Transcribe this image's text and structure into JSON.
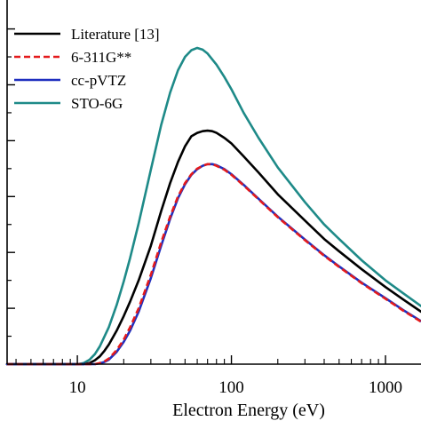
{
  "chart_data": {
    "type": "line",
    "title": "",
    "xlabel": "Electron Energy (eV)",
    "ylabel": "",
    "xscale": "log",
    "xlim": [
      3.5,
      1700
    ],
    "ylim": [
      0,
      6.2
    ],
    "grid": false,
    "legend_position": "top-left",
    "x_tick_labels": [
      {
        "value": 10,
        "label": "10"
      },
      {
        "value": 100,
        "label": "100"
      },
      {
        "value": 1000,
        "label": "1000"
      }
    ],
    "y_major_ticks": [
      1,
      2,
      3,
      4,
      5,
      6
    ],
    "series": [
      {
        "name": "Literature [13]",
        "color": "#000000",
        "dashed": false,
        "points": [
          [
            3.5,
            0
          ],
          [
            11,
            0
          ],
          [
            12,
            0.02
          ],
          [
            13,
            0.07
          ],
          [
            14,
            0.14
          ],
          [
            15,
            0.24
          ],
          [
            16,
            0.35
          ],
          [
            18,
            0.6
          ],
          [
            20,
            0.86
          ],
          [
            22,
            1.12
          ],
          [
            25,
            1.5
          ],
          [
            30,
            2.12
          ],
          [
            35,
            2.74
          ],
          [
            40,
            3.24
          ],
          [
            45,
            3.62
          ],
          [
            50,
            3.9
          ],
          [
            55,
            4.08
          ],
          [
            60,
            4.14
          ],
          [
            65,
            4.17
          ],
          [
            70,
            4.18
          ],
          [
            75,
            4.17
          ],
          [
            80,
            4.14
          ],
          [
            90,
            4.05
          ],
          [
            100,
            3.95
          ],
          [
            120,
            3.72
          ],
          [
            150,
            3.43
          ],
          [
            200,
            3.04
          ],
          [
            300,
            2.57
          ],
          [
            400,
            2.24
          ],
          [
            500,
            2.02
          ],
          [
            700,
            1.7
          ],
          [
            1000,
            1.38
          ],
          [
            1300,
            1.16
          ],
          [
            1700,
            0.94
          ]
        ]
      },
      {
        "name": "6-311G**",
        "color": "#e41a1c",
        "dashed": true,
        "points": [
          [
            3.5,
            0
          ],
          [
            13,
            0
          ],
          [
            14,
            0.02
          ],
          [
            15,
            0.05
          ],
          [
            16,
            0.1
          ],
          [
            18,
            0.25
          ],
          [
            20,
            0.44
          ],
          [
            22,
            0.66
          ],
          [
            25,
            1.0
          ],
          [
            30,
            1.6
          ],
          [
            35,
            2.18
          ],
          [
            40,
            2.64
          ],
          [
            45,
            3.0
          ],
          [
            50,
            3.24
          ],
          [
            55,
            3.4
          ],
          [
            60,
            3.5
          ],
          [
            65,
            3.55
          ],
          [
            70,
            3.58
          ],
          [
            75,
            3.58
          ],
          [
            80,
            3.55
          ],
          [
            90,
            3.48
          ],
          [
            100,
            3.39
          ],
          [
            120,
            3.2
          ],
          [
            150,
            2.95
          ],
          [
            200,
            2.63
          ],
          [
            300,
            2.22
          ],
          [
            400,
            1.94
          ],
          [
            500,
            1.74
          ],
          [
            700,
            1.45
          ],
          [
            1000,
            1.17
          ],
          [
            1300,
            0.96
          ],
          [
            1700,
            0.76
          ]
        ]
      },
      {
        "name": "cc-pVTZ",
        "color": "#1f2fbf",
        "dashed": false,
        "points": [
          [
            3.5,
            0
          ],
          [
            13,
            0
          ],
          [
            14,
            0.015
          ],
          [
            15,
            0.04
          ],
          [
            16,
            0.08
          ],
          [
            18,
            0.22
          ],
          [
            20,
            0.4
          ],
          [
            22,
            0.6
          ],
          [
            25,
            0.94
          ],
          [
            30,
            1.54
          ],
          [
            35,
            2.12
          ],
          [
            40,
            2.6
          ],
          [
            45,
            2.97
          ],
          [
            50,
            3.22
          ],
          [
            55,
            3.39
          ],
          [
            60,
            3.49
          ],
          [
            65,
            3.55
          ],
          [
            70,
            3.58
          ],
          [
            75,
            3.58
          ],
          [
            80,
            3.56
          ],
          [
            90,
            3.49
          ],
          [
            100,
            3.4
          ],
          [
            120,
            3.21
          ],
          [
            150,
            2.96
          ],
          [
            200,
            2.64
          ],
          [
            300,
            2.23
          ],
          [
            400,
            1.95
          ],
          [
            500,
            1.75
          ],
          [
            700,
            1.46
          ],
          [
            1000,
            1.18
          ],
          [
            1300,
            0.97
          ],
          [
            1700,
            0.77
          ]
        ]
      },
      {
        "name": "STO-6G",
        "color": "#1e8a88",
        "dashed": false,
        "points": [
          [
            3.5,
            0
          ],
          [
            10,
            0
          ],
          [
            11,
            0.02
          ],
          [
            12,
            0.08
          ],
          [
            13,
            0.18
          ],
          [
            14,
            0.32
          ],
          [
            16,
            0.66
          ],
          [
            18,
            1.06
          ],
          [
            20,
            1.48
          ],
          [
            22,
            1.9
          ],
          [
            25,
            2.52
          ],
          [
            30,
            3.48
          ],
          [
            35,
            4.28
          ],
          [
            40,
            4.86
          ],
          [
            45,
            5.26
          ],
          [
            50,
            5.5
          ],
          [
            55,
            5.62
          ],
          [
            60,
            5.66
          ],
          [
            65,
            5.63
          ],
          [
            70,
            5.56
          ],
          [
            80,
            5.36
          ],
          [
            90,
            5.14
          ],
          [
            100,
            4.92
          ],
          [
            120,
            4.5
          ],
          [
            150,
            4.05
          ],
          [
            200,
            3.52
          ],
          [
            300,
            2.9
          ],
          [
            400,
            2.5
          ],
          [
            500,
            2.24
          ],
          [
            700,
            1.86
          ],
          [
            1000,
            1.5
          ],
          [
            1300,
            1.27
          ],
          [
            1700,
            1.04
          ]
        ]
      }
    ]
  }
}
